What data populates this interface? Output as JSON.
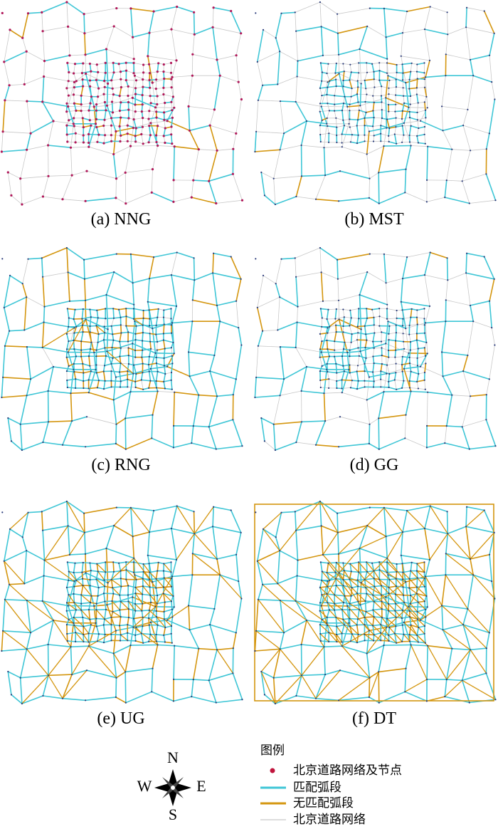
{
  "panels": [
    {
      "caption": "(a) NNG"
    },
    {
      "caption": "(b) MST"
    },
    {
      "caption": "(c) RNG"
    },
    {
      "caption": "(d) GG"
    },
    {
      "caption": "(e) UG"
    },
    {
      "caption": "(f) DT"
    }
  ],
  "compass": {
    "n": "N",
    "e": "E",
    "s": "S",
    "w": "W"
  },
  "legend": {
    "title": "图例",
    "items": [
      {
        "label": "北京道路网络及节点"
      },
      {
        "label": "匹配弧段"
      },
      {
        "label": "无匹配弧段"
      },
      {
        "label": "北京道路网络"
      }
    ]
  }
}
